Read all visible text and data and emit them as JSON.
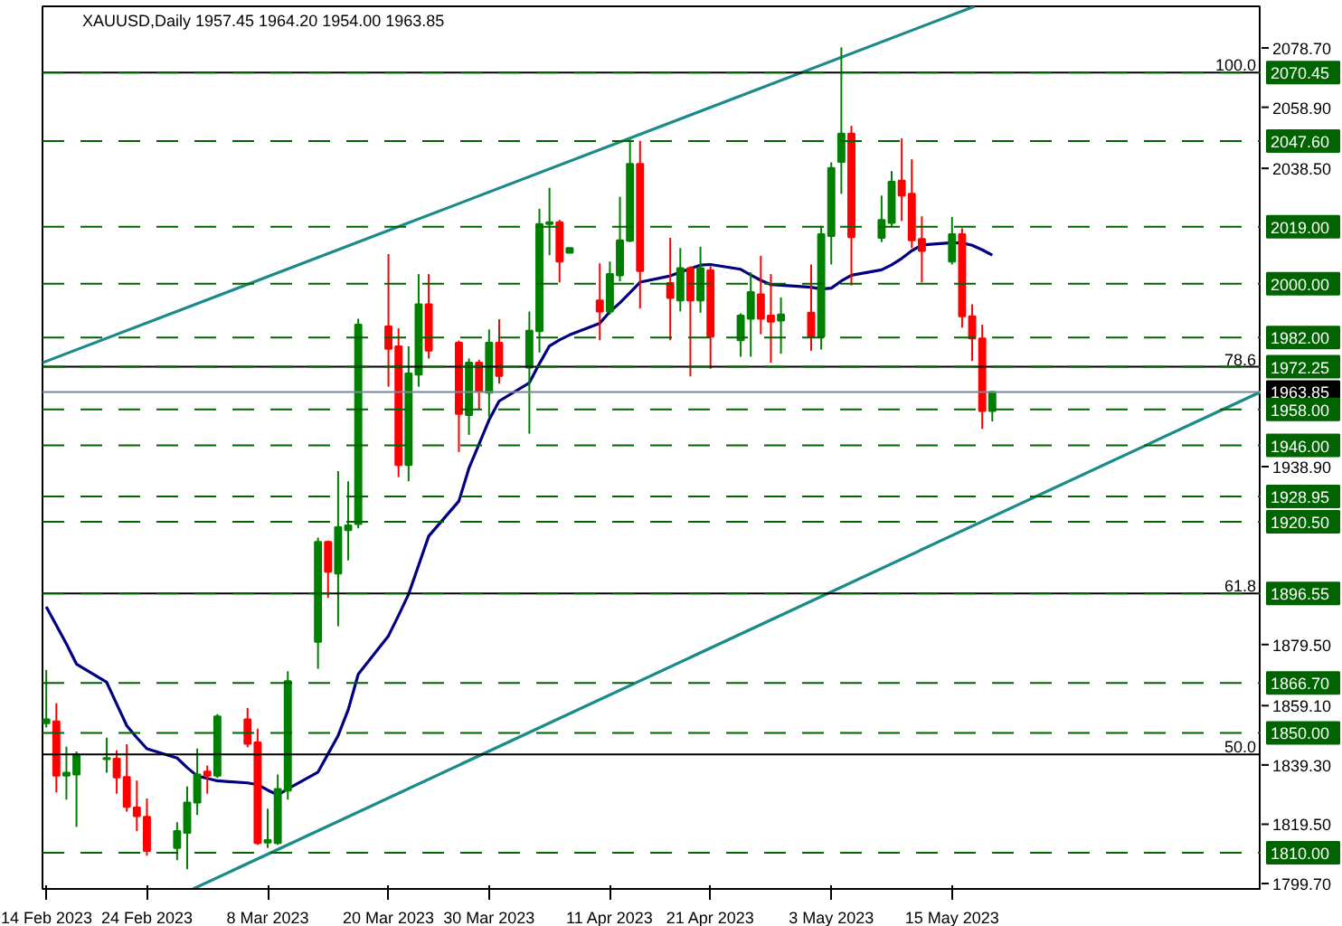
{
  "chart_data": {
    "type": "candlestick",
    "title": "XAUUSD,Daily  1957.45 1964.20 1954.00 1963.85",
    "x": [
      "2023-02-14",
      "2023-02-15",
      "2023-02-16",
      "2023-02-17",
      "2023-02-20",
      "2023-02-21",
      "2023-02-22",
      "2023-02-23",
      "2023-02-24",
      "2023-02-27",
      "2023-02-28",
      "2023-03-01",
      "2023-03-02",
      "2023-03-03",
      "2023-03-06",
      "2023-03-07",
      "2023-03-08",
      "2023-03-09",
      "2023-03-10",
      "2023-03-13",
      "2023-03-14",
      "2023-03-15",
      "2023-03-16",
      "2023-03-17",
      "2023-03-20",
      "2023-03-21",
      "2023-03-22",
      "2023-03-23",
      "2023-03-24",
      "2023-03-27",
      "2023-03-28",
      "2023-03-29",
      "2023-03-30",
      "2023-03-31",
      "2023-04-03",
      "2023-04-04",
      "2023-04-05",
      "2023-04-06",
      "2023-04-07",
      "2023-04-10",
      "2023-04-11",
      "2023-04-12",
      "2023-04-13",
      "2023-04-14",
      "2023-04-17",
      "2023-04-18",
      "2023-04-19",
      "2023-04-20",
      "2023-04-21",
      "2023-04-24",
      "2023-04-25",
      "2023-04-26",
      "2023-04-27",
      "2023-04-28",
      "2023-05-01",
      "2023-05-02",
      "2023-05-03",
      "2023-05-04",
      "2023-05-05",
      "2023-05-08",
      "2023-05-09",
      "2023-05-10",
      "2023-05-11",
      "2023-05-12",
      "2023-05-15",
      "2023-05-16",
      "2023-05-17",
      "2023-05-18",
      "2023-05-19"
    ],
    "ohlc": [
      [
        1853.2,
        1871.0,
        1851.8,
        1854.5
      ],
      [
        1853.8,
        1859.9,
        1830.1,
        1835.7
      ],
      [
        1835.7,
        1845.4,
        1827.7,
        1836.7
      ],
      [
        1836.1,
        1843.8,
        1818.6,
        1842.8
      ],
      [
        1841.2,
        1848.4,
        1836.7,
        1841.6
      ],
      [
        1841.4,
        1844.2,
        1829.7,
        1835.1
      ],
      [
        1835.3,
        1846.2,
        1823.7,
        1825.3
      ],
      [
        1825.1,
        1834.1,
        1817.2,
        1822.2
      ],
      [
        1822.0,
        1828.1,
        1809.0,
        1810.6
      ],
      [
        1811.6,
        1820.2,
        1807.5,
        1817.2
      ],
      [
        1816.6,
        1832.1,
        1804.5,
        1826.7
      ],
      [
        1826.7,
        1844.8,
        1822.6,
        1836.1
      ],
      [
        1837.1,
        1839.1,
        1829.7,
        1835.7
      ],
      [
        1835.7,
        1856.3,
        1835.0,
        1855.5
      ],
      [
        1854.5,
        1858.3,
        1845.2,
        1846.4
      ],
      [
        1846.8,
        1851.4,
        1812.6,
        1813.2
      ],
      [
        1813.4,
        1824.7,
        1811.6,
        1814.2
      ],
      [
        1813.2,
        1836.1,
        1812.6,
        1831.3
      ],
      [
        1830.7,
        1870.6,
        1827.7,
        1867.3
      ],
      [
        1880.4,
        1915.2,
        1871.4,
        1913.8
      ],
      [
        1913.8,
        1914.2,
        1895.1,
        1903.8
      ],
      [
        1903.2,
        1937.4,
        1885.6,
        1918.7
      ],
      [
        1917.7,
        1934.0,
        1907.6,
        1919.3
      ],
      [
        1919.7,
        1988.3,
        1918.3,
        1986.3
      ],
      [
        1985.7,
        2009.9,
        1965.6,
        1978.2
      ],
      [
        1979.1,
        1985.1,
        1935.4,
        1939.4
      ],
      [
        1939.4,
        1979.1,
        1934.0,
        1970.0
      ],
      [
        1969.6,
        2003.2,
        1965.6,
        1993.1
      ],
      [
        1993.1,
        2003.2,
        1975.0,
        1977.6
      ],
      [
        1980.3,
        1981.0,
        1943.8,
        1956.5
      ],
      [
        1956.1,
        1975.0,
        1949.5,
        1973.6
      ],
      [
        1973.6,
        1974.6,
        1957.9,
        1964.0
      ],
      [
        1963.6,
        1984.7,
        1955.5,
        1980.3
      ],
      [
        1980.3,
        1988.1,
        1966.6,
        1969.2
      ],
      [
        1972.0,
        1990.7,
        1949.9,
        1984.3
      ],
      [
        1984.1,
        2025.0,
        1977.0,
        2019.9
      ],
      [
        2019.9,
        2032.0,
        2009.5,
        2020.5
      ],
      [
        2020.5,
        2021.3,
        2000.4,
        2007.4
      ],
      [
        2010.3,
        2011.9,
        2010.3,
        2011.9
      ],
      [
        1994.4,
        2006.8,
        1981.1,
        1990.7
      ],
      [
        1990.7,
        2007.4,
        1989.7,
        2003.2
      ],
      [
        2002.8,
        2029.0,
        2000.8,
        2014.5
      ],
      [
        2014.3,
        2048.1,
        2013.9,
        2040.0
      ],
      [
        2040.0,
        2047.7,
        1991.7,
        2004.2
      ],
      [
        2000.2,
        2015.3,
        1981.1,
        1995.2
      ],
      [
        1994.4,
        2011.9,
        1990.7,
        2005.2
      ],
      [
        2005.2,
        2005.8,
        1969.0,
        1994.4
      ],
      [
        1994.4,
        2012.3,
        1990.3,
        2005.2
      ],
      [
        2004.4,
        2005.8,
        1971.6,
        1982.3
      ],
      [
        1981.1,
        1990.1,
        1975.6,
        1989.3
      ],
      [
        1988.3,
        2003.8,
        1975.6,
        1997.2
      ],
      [
        1996.4,
        2009.3,
        1983.1,
        1988.3
      ],
      [
        1989.3,
        2003.2,
        1973.6,
        1987.3
      ],
      [
        1987.7,
        1995.4,
        1976.6,
        1989.7
      ],
      [
        1990.3,
        2006.4,
        1977.6,
        1982.3
      ],
      [
        1982.3,
        2019.3,
        1978.0,
        2016.5
      ],
      [
        2015.9,
        2040.5,
        2006.4,
        2038.6
      ],
      [
        2040.7,
        2078.9,
        2030.0,
        2050.1
      ],
      [
        2050.1,
        2052.7,
        1999.4,
        2015.5
      ],
      [
        2015.3,
        2029.4,
        2013.9,
        2021.3
      ],
      [
        2020.3,
        2037.6,
        2018.9,
        2034.0
      ],
      [
        2034.4,
        2048.5,
        2020.9,
        2029.4
      ],
      [
        2030.0,
        2041.5,
        2011.9,
        2014.5
      ],
      [
        2014.9,
        2022.5,
        2000.4,
        2010.9
      ],
      [
        2007.4,
        2022.3,
        2006.4,
        2016.5
      ],
      [
        2016.5,
        2018.5,
        1985.3,
        1989.1
      ],
      [
        1989.1,
        1993.1,
        1974.2,
        1981.7
      ],
      [
        1981.7,
        1986.3,
        1951.5,
        1957.5
      ],
      [
        1957.45,
        1964.2,
        1954.0,
        1963.85
      ]
    ],
    "colors": [
      "#008000",
      "#ff0000",
      "#008000",
      "#008000",
      "#008000",
      "#ff0000",
      "#ff0000",
      "#ff0000",
      "#ff0000",
      "#008000",
      "#008000",
      "#008000",
      "#ff0000",
      "#008000",
      "#ff0000",
      "#ff0000",
      "#008000",
      "#008000",
      "#008000",
      "#008000",
      "#ff0000",
      "#008000",
      "#008000",
      "#008000",
      "#ff0000",
      "#ff0000",
      "#008000",
      "#008000",
      "#ff0000",
      "#ff0000",
      "#008000",
      "#ff0000",
      "#008000",
      "#ff0000",
      "#008000",
      "#008000",
      "#008000",
      "#ff0000",
      "#008000",
      "#ff0000",
      "#008000",
      "#008000",
      "#008000",
      "#ff0000",
      "#ff0000",
      "#008000",
      "#ff0000",
      "#008000",
      "#ff0000",
      "#008000",
      "#008000",
      "#ff0000",
      "#ff0000",
      "#008000",
      "#ff0000",
      "#008000",
      "#008000",
      "#008000",
      "#ff0000",
      "#008000",
      "#008000",
      "#ff0000",
      "#ff0000",
      "#ff0000",
      "#008000",
      "#ff0000",
      "#ff0000",
      "#ff0000",
      "#008000"
    ],
    "series": [
      {
        "type": "line",
        "color": "#000080",
        "values": [
          1892.1,
          1885.9,
          1879.7,
          1873.0,
          1866.9,
          1859.6,
          1852.4,
          1848.4,
          1844.7,
          1841.6,
          1838.4,
          1835.6,
          1834.8,
          1834.0,
          1833.3,
          1832.7,
          1830.9,
          1829.3,
          1831.3,
          1836.9,
          1843.0,
          1849.1,
          1857.7,
          1869.6,
          1882.4,
          1889.2,
          1896.3,
          1906.0,
          1915.7,
          1927.4,
          1938.4,
          1946.4,
          1954.5,
          1960.8,
          1966.9,
          1973.3,
          1979.2,
          1981.2,
          1982.9,
          1986.8,
          1990.6,
          1993.6,
          1997.0,
          2000.5,
          2002.6,
          2003.8,
          2005.0,
          2006.2,
          2006.4,
          2004.8,
          2002.9,
          2001.1,
          1999.7,
          1999.5,
          1998.8,
          1998.2,
          1998.5,
          2000.9,
          2002.8,
          2004.6,
          2006.3,
          2008.4,
          2011.0,
          2012.9,
          2013.7,
          2013.6,
          2012.8,
          2011.3,
          2009.5
        ]
      },
      {
        "type": "line",
        "color": "#1b8a8a",
        "x": [
          "2023-02-13T15:00",
          "2023-05-17T06:00"
        ],
        "values": [
          1973.6,
          2092.6
        ]
      },
      {
        "type": "line",
        "color": "#1b8a8a",
        "x": [
          "2023-02-28T14:00",
          "2023-06-14T18:00"
        ],
        "values": [
          1797.9,
          1964.0
        ]
      }
    ],
    "ref_lines": [
      {
        "axis": "y",
        "value": 2070.45,
        "color": "#000000",
        "line_style": "solid"
      },
      {
        "axis": "y",
        "value": 1972.25,
        "color": "#000000",
        "line_style": "solid"
      },
      {
        "axis": "y",
        "value": 1896.55,
        "color": "#000000",
        "line_style": "solid"
      },
      {
        "axis": "y",
        "value": 1842.8,
        "color": "#000000",
        "line_style": "solid"
      },
      {
        "axis": "y",
        "value": 1963.85,
        "label": "1963.85",
        "color": "#778899",
        "line_style": "solid"
      },
      {
        "axis": "y",
        "value": 2070.45,
        "label": "2070.45",
        "color": "#006400",
        "line_style": "dashed"
      },
      {
        "axis": "y",
        "value": 2047.6,
        "label": "2047.60",
        "color": "#006400",
        "line_style": "dashed"
      },
      {
        "axis": "y",
        "value": 2019.0,
        "label": "2019.00",
        "color": "#006400",
        "line_style": "dashed"
      },
      {
        "axis": "y",
        "value": 2000.0,
        "label": "2000.00",
        "color": "#006400",
        "line_style": "dashed"
      },
      {
        "axis": "y",
        "value": 1982.0,
        "label": "1982.00",
        "color": "#006400",
        "line_style": "dashed"
      },
      {
        "axis": "y",
        "value": 1972.25,
        "label": "1972.25",
        "color": "#006400",
        "line_style": "dashed"
      },
      {
        "axis": "y",
        "value": 1958.0,
        "label": "1958.00",
        "color": "#006400",
        "line_style": "dashed"
      },
      {
        "axis": "y",
        "value": 1946.0,
        "label": "1946.00",
        "color": "#006400",
        "line_style": "dashed"
      },
      {
        "axis": "y",
        "value": 1928.95,
        "label": "1928.95",
        "color": "#006400",
        "line_style": "dashed"
      },
      {
        "axis": "y",
        "value": 1920.5,
        "label": "1920.50",
        "color": "#006400",
        "line_style": "dashed"
      },
      {
        "axis": "y",
        "value": 1896.55,
        "label": "1896.55",
        "color": "#006400",
        "line_style": "dashed"
      },
      {
        "axis": "y",
        "value": 1866.7,
        "label": "1866.70",
        "color": "#006400",
        "line_style": "dashed"
      },
      {
        "axis": "y",
        "value": 1850.0,
        "label": "1850.00",
        "color": "#006400",
        "line_style": "dashed"
      },
      {
        "axis": "y",
        "value": 1810.0,
        "label": "1810.00",
        "color": "#006400",
        "line_style": "dashed"
      }
    ],
    "annotations": [
      {
        "text": "100.0",
        "y": 2070.45
      },
      {
        "text": "78.6",
        "y": 1972.25
      },
      {
        "text": "61.8",
        "y": 1896.55
      },
      {
        "text": "50.0",
        "y": 1842.8
      }
    ],
    "xlim": [
      "2023-02-13T15:00",
      "2023-06-14T18:00"
    ],
    "xticks": [
      {
        "value": "2023-02-14",
        "label": "14 Feb 2023"
      },
      {
        "value": "2023-02-24",
        "label": "24 Feb 2023"
      },
      {
        "value": "2023-03-08",
        "label": "8 Mar 2023"
      },
      {
        "value": "2023-03-20",
        "label": "20 Mar 2023"
      },
      {
        "value": "2023-03-30",
        "label": "30 Mar 2023"
      },
      {
        "value": "2023-04-11",
        "label": "11 Apr 2023"
      },
      {
        "value": "2023-04-21",
        "label": "21 Apr 2023"
      },
      {
        "value": "2023-05-03",
        "label": "3 May 2023"
      },
      {
        "value": "2023-05-15",
        "label": "15 May 2023"
      }
    ],
    "ylim": [
      1797.9,
      2092.6
    ],
    "yticks": [
      {
        "value": 2078.7,
        "label": "2078.70"
      },
      {
        "value": 2058.9,
        "label": "2058.90"
      },
      {
        "value": 2038.5,
        "label": "2038.50"
      },
      {
        "value": 1938.9,
        "label": "1938.90"
      },
      {
        "value": 1879.5,
        "label": "1879.50"
      },
      {
        "value": 1859.1,
        "label": "1859.10"
      },
      {
        "value": 1839.3,
        "label": "1839.30"
      },
      {
        "value": 1819.5,
        "label": "1819.50"
      },
      {
        "value": 1799.7,
        "label": "1799.70"
      }
    ]
  }
}
